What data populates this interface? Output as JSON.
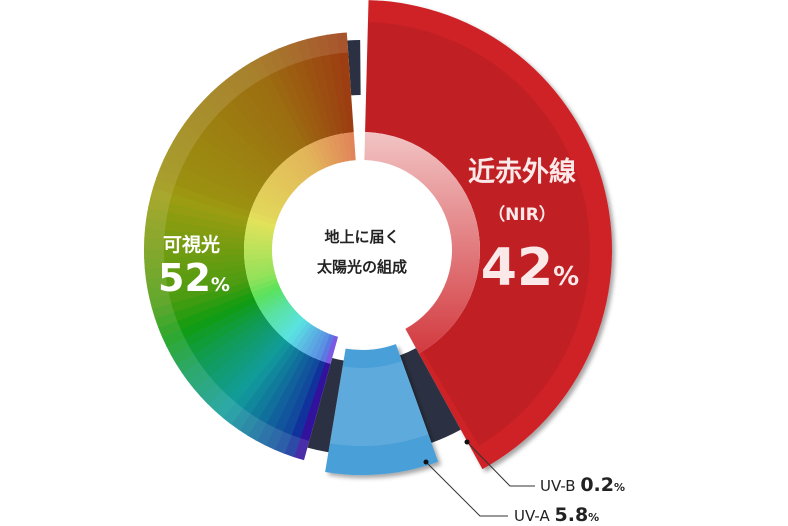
{
  "chart_data": {
    "type": "pie",
    "title": "地上に届く太陽光の組成",
    "title_line1": "地上に届く",
    "title_line2": "太陽光の組成",
    "categories": [
      "近赤外線 (NIR)",
      "UV-B",
      "UV-A",
      "可視光"
    ],
    "values": [
      42,
      0.2,
      5.8,
      52
    ],
    "unit": "%",
    "colors": {
      "nir": "#cf2027",
      "uvb": "#2b3142",
      "uva": "#4a9fd8",
      "separator": "#2b3142"
    },
    "labels": {
      "nir": {
        "name": "近赤外線",
        "sub": "（NIR）",
        "value": "42",
        "unit": "%"
      },
      "visible": {
        "name": "可視光",
        "value": "52",
        "unit": "%"
      },
      "uvb": {
        "name": "UV-B",
        "value": "0.2",
        "unit": "%"
      },
      "uva": {
        "name": "UV-A",
        "value": "5.8",
        "unit": "%"
      }
    }
  }
}
